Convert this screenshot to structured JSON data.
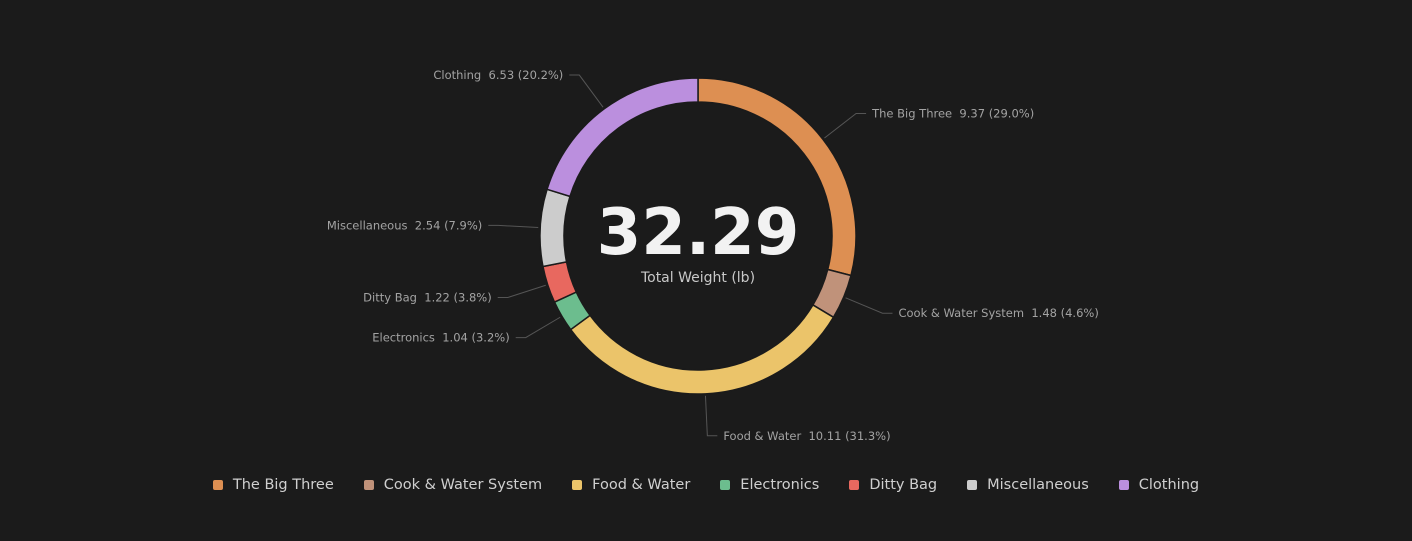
{
  "chart_data": {
    "type": "pie",
    "style": "donut",
    "center": {
      "value": "32.29",
      "label": "Total Weight (lb)"
    },
    "categories": [
      "The Big Three",
      "Cook & Water System",
      "Food & Water",
      "Electronics",
      "Ditty Bag",
      "Miscellaneous",
      "Clothing"
    ],
    "values": [
      9.37,
      1.48,
      10.11,
      1.04,
      1.22,
      2.54,
      6.53
    ],
    "labels": [
      "The Big Three  9.37 (29.0%)",
      "Cook & Water System  1.48 (4.6%)",
      "Food & Water  10.11 (31.3%)",
      "Electronics  1.04 (3.2%)",
      "Ditty Bag  1.22 (3.8%)",
      "Miscellaneous  2.54 (7.9%)",
      "Clothing  6.53 (20.2%)"
    ],
    "colors": [
      "#dd8f52",
      "#c0927a",
      "#ebc46a",
      "#6cbd8e",
      "#e8685f",
      "#cccccc",
      "#bb8fde"
    ],
    "legend": "bottom-center"
  }
}
